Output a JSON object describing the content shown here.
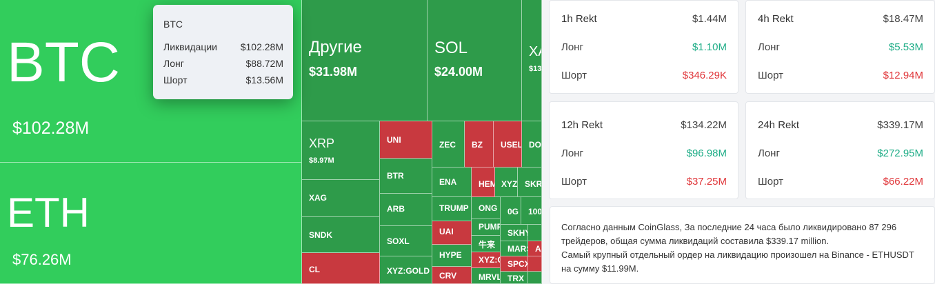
{
  "tooltip": {
    "title": "BTC",
    "rows": [
      {
        "label": "Ликвидации",
        "value": "$102.28M"
      },
      {
        "label": "Лонг",
        "value": "$88.72M"
      },
      {
        "label": "Шорт",
        "value": "$13.56M"
      }
    ]
  },
  "treemap": {
    "btc": {
      "symbol": "BTC",
      "value": "$102.28M"
    },
    "eth": {
      "symbol": "ETH",
      "value": "$76.26M"
    },
    "other": {
      "symbol": "Другие",
      "value": "$31.98M"
    },
    "sol": {
      "symbol": "SOL",
      "value": "$24.00M"
    },
    "xag_top": {
      "symbol": "XA",
      "value": "$13"
    },
    "xrp": {
      "symbol": "XRP",
      "value": "$8.97M"
    },
    "small": {
      "xag": "XAG",
      "sndk": "SNDK",
      "cl": "CL",
      "uni": "UNI",
      "btr": "BTR",
      "arb": "ARB",
      "soxl": "SOXL",
      "xyzgold": "XYZ:GOLD",
      "zec": "ZEC",
      "bz": "BZ",
      "usell": "USELL",
      "doc": "DOC",
      "ena": "ENA",
      "hem": "HEM",
      "xyz": "XYZ",
      "skr": "SKR",
      "trump": "TRUMP",
      "ong": "ONG",
      "og": "0G",
      "g100": "100",
      "uai": "UAI",
      "pump": "PUMP",
      "skhy": "SKHY",
      "cn": "牛来",
      "mars": "MARS",
      "hype": "HYPE",
      "xyzc": "XYZ:C",
      "spcx": "SPCX",
      "aa": "AA",
      "crv": "CRV",
      "mrvl": "MRVL",
      "trx": "TRX"
    }
  },
  "cards": [
    {
      "title": "1h Rekt",
      "total": "$1.44M",
      "long_label": "Лонг",
      "long": "$1.10M",
      "short_label": "Шорт",
      "short": "$346.29K"
    },
    {
      "title": "4h Rekt",
      "total": "$18.47M",
      "long_label": "Лонг",
      "long": "$5.53M",
      "short_label": "Шорт",
      "short": "$12.94M"
    },
    {
      "title": "12h Rekt",
      "total": "$134.22M",
      "long_label": "Лонг",
      "long": "$96.98M",
      "short_label": "Шорт",
      "short": "$37.25M"
    },
    {
      "title": "24h Rekt",
      "total": "$339.17M",
      "long_label": "Лонг",
      "long": "$272.95M",
      "short_label": "Шорт",
      "short": "$66.22M"
    }
  ],
  "summary": {
    "line1": "Согласно данным CoinGlass, За последние 24 часа было ликвидировано 87 296 трейдеров, общая сумма ликвидаций составила $339.17 million.",
    "line2": "Самый крупный отдельный ордер на ликвидацию произошел на Binance - ETHUSDT на сумму $11.99M."
  },
  "colors": {
    "long": "#1fad87",
    "short": "#e0363a",
    "tile_bright": "#32cd5c",
    "tile_red": "#c8393f"
  }
}
